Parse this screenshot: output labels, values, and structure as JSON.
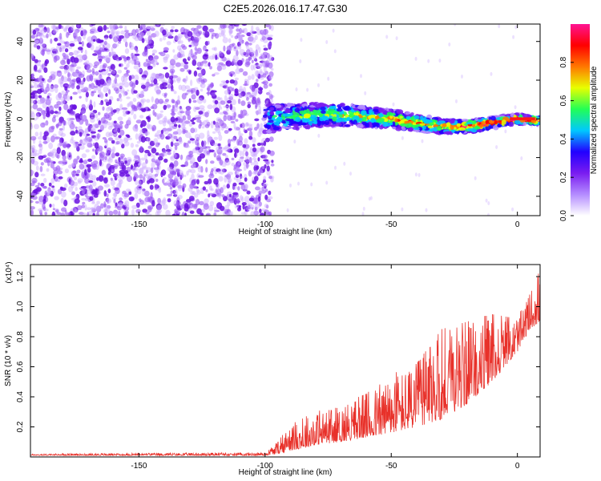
{
  "title": "C2E5.2026.016.17.47.G30",
  "chart_data": [
    {
      "type": "heatmap",
      "name": "spectrogram",
      "xlabel": "Height of straight line (km)",
      "ylabel": "Frequency (Hz)",
      "xlim": [
        -193,
        9
      ],
      "ylim": [
        -50,
        49
      ],
      "xticks": [
        -150,
        -100,
        -50,
        0
      ],
      "xtick_labels": [
        "-150",
        "-100",
        "-50",
        "0"
      ],
      "yticks": [
        -40,
        -20,
        0,
        20,
        40
      ],
      "ytick_labels": [
        "-40",
        "-20",
        "0",
        "20",
        "40"
      ],
      "colorbar": {
        "label": "Normalized spectral amplitude",
        "range": [
          0,
          1
        ],
        "ticks": [
          0.0,
          0.2,
          0.4,
          0.6,
          0.8
        ],
        "tick_labels": [
          "0.0",
          "0.2",
          "0.4",
          "0.6",
          "0.8"
        ],
        "colors": [
          "#ffffff",
          "#b48cff",
          "#7a1cf0",
          "#2200ff",
          "#00c8ff",
          "#22ff55",
          "#e8ff00",
          "#ff7700",
          "#ff0000",
          "#ff1493"
        ]
      },
      "signal_track": {
        "description": "frequency centre of the coherent signal vs height",
        "x": [
          -100,
          -90,
          -80,
          -70,
          -60,
          -50,
          -40,
          -30,
          -20,
          -10,
          0,
          9
        ],
        "y": [
          0,
          1,
          2,
          2,
          1,
          0,
          -2,
          -4,
          -4,
          -2,
          0,
          -1
        ]
      },
      "noise_region_x": [
        -193,
        -97
      ]
    },
    {
      "type": "line",
      "name": "snr",
      "xlabel": "Height of straight line (km)",
      "ylabel": "SNR (10 * v/v)",
      "scale_label": "(x10⁴)",
      "xlim": [
        -193,
        9
      ],
      "ylim": [
        0,
        1.28
      ],
      "xticks": [
        -150,
        -100,
        -50,
        0
      ],
      "xtick_labels": [
        "-150",
        "-100",
        "-50",
        "0"
      ],
      "yticks": [
        0.2,
        0.4,
        0.6,
        0.8,
        1.0,
        1.2
      ],
      "ytick_labels": [
        "0.2",
        "0.4",
        "0.6",
        "0.8",
        "1.0",
        "1.2"
      ],
      "color": "#e8312a",
      "envelope": {
        "x": [
          -193,
          -100,
          -95,
          -90,
          -80,
          -70,
          -60,
          -50,
          -40,
          -30,
          -20,
          -10,
          0,
          5,
          9
        ],
        "baseline": [
          0.01,
          0.01,
          0.02,
          0.04,
          0.08,
          0.1,
          0.13,
          0.16,
          0.2,
          0.25,
          0.35,
          0.5,
          0.7,
          0.85,
          0.9
        ],
        "peak": [
          0.02,
          0.03,
          0.1,
          0.22,
          0.3,
          0.35,
          0.42,
          0.55,
          0.62,
          0.85,
          0.9,
          0.95,
          0.92,
          1.1,
          1.28
        ]
      }
    }
  ]
}
